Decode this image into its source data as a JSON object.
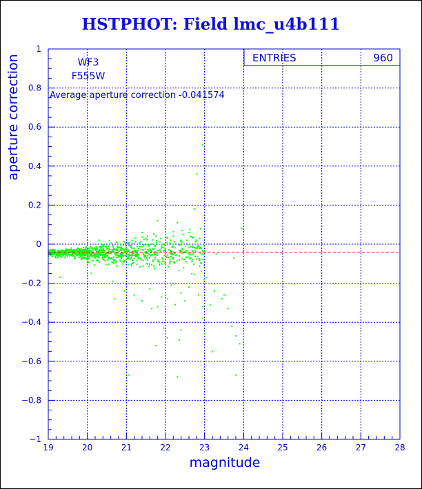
{
  "chart_data": {
    "type": "scatter",
    "title": "HSTPHOT: Field lmc_u4b111",
    "xlabel": "magnitude",
    "ylabel": "aperture correction",
    "xlim": [
      19,
      28
    ],
    "ylim": [
      -1,
      1
    ],
    "x_ticks": [
      "19",
      "20",
      "21",
      "22",
      "23",
      "24",
      "25",
      "26",
      "27",
      "28"
    ],
    "y_ticks": [
      "-1",
      "-0.8",
      "-0.6",
      "-0.4",
      "-0.2",
      "0",
      "0.2",
      "0.4",
      "0.6",
      "0.8",
      "1"
    ],
    "grid": true,
    "stats_box": {
      "label": "ENTRIES",
      "value": "960"
    },
    "annotations": [
      "WF3",
      "F555W",
      "Average aperture correction -0.041574"
    ],
    "average_line": -0.041574,
    "marker_color": "#00ff00",
    "axis_color": "#0000cc",
    "avg_line_color": "#ff0000",
    "points_note_count": 960,
    "points": [
      [
        22.95,
        0.51
      ],
      [
        22.8,
        0.36
      ],
      [
        23.95,
        0.08
      ],
      [
        22.9,
        0.08
      ],
      [
        22.6,
        0.06
      ],
      [
        22.3,
        0.11
      ],
      [
        22.75,
        0.18
      ],
      [
        21.8,
        0.12
      ],
      [
        22.0,
        0.09
      ],
      [
        22.2,
        0.04
      ],
      [
        21.7,
        0.05
      ],
      [
        21.5,
        0.03
      ],
      [
        21.4,
        0.06
      ],
      [
        22.55,
        0.02
      ],
      [
        22.7,
        -0.01
      ],
      [
        22.4,
        0.0
      ],
      [
        22.05,
        0.03
      ],
      [
        21.9,
        -0.01
      ],
      [
        23.3,
        -0.05
      ],
      [
        23.75,
        -0.07
      ],
      [
        23.05,
        -0.17
      ],
      [
        23.25,
        -0.24
      ],
      [
        23.5,
        -0.26
      ],
      [
        23.45,
        -0.28
      ],
      [
        23.15,
        -0.31
      ],
      [
        23.6,
        -0.33
      ],
      [
        22.05,
        -0.28
      ],
      [
        21.9,
        -0.27
      ],
      [
        22.25,
        -0.31
      ],
      [
        22.4,
        -0.25
      ],
      [
        22.6,
        -0.22
      ],
      [
        22.85,
        -0.26
      ],
      [
        21.6,
        -0.23
      ],
      [
        21.4,
        -0.29
      ],
      [
        21.2,
        -0.26
      ],
      [
        20.95,
        -0.24
      ],
      [
        20.7,
        -0.28
      ],
      [
        20.65,
        -0.19
      ],
      [
        21.65,
        -0.33
      ],
      [
        21.8,
        -0.32
      ],
      [
        22.15,
        -0.21
      ],
      [
        22.5,
        -0.29
      ],
      [
        22.95,
        -0.32
      ],
      [
        21.95,
        -0.43
      ],
      [
        22.4,
        -0.44
      ],
      [
        23.7,
        -0.42
      ],
      [
        23.8,
        -0.47
      ],
      [
        22.05,
        -0.48
      ],
      [
        22.35,
        -0.49
      ],
      [
        23.9,
        -0.51
      ],
      [
        21.75,
        -0.52
      ],
      [
        23.2,
        -0.55
      ],
      [
        21.05,
        -0.67
      ],
      [
        22.3,
        -0.68
      ],
      [
        23.8,
        -0.67
      ],
      [
        23.0,
        -0.46
      ],
      [
        22.95,
        -0.38
      ],
      [
        20.1,
        -0.15
      ],
      [
        19.3,
        -0.17
      ]
    ]
  }
}
